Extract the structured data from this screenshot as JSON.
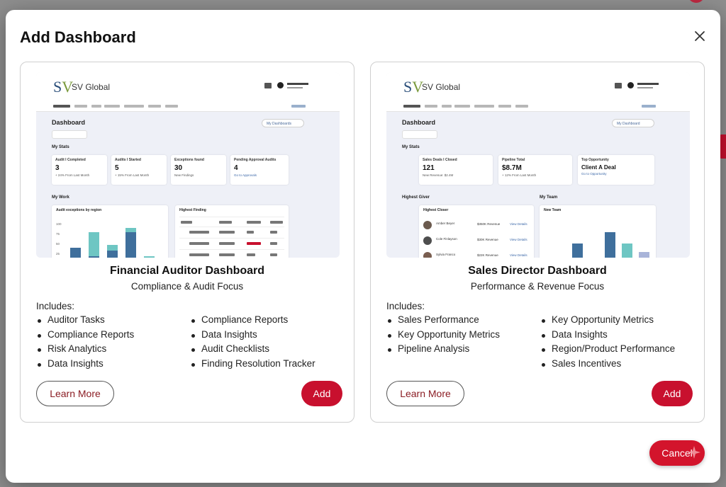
{
  "modal": {
    "title": "Add Dashboard",
    "cancel_label": "Cancel"
  },
  "cards": [
    {
      "title": "Financial Auditor Dashboard",
      "subtitle": "Compliance & Audit Focus",
      "includes_label": "Includes:",
      "features_col1": [
        "Auditor Tasks",
        "Compliance Reports",
        "Risk Analytics",
        "Data Insights"
      ],
      "features_col2": [
        "Compliance Reports",
        "Data Insights",
        "Audit Checklists",
        "Finding Resolution Tracker"
      ],
      "learn_more_label": "Learn More",
      "add_label": "Add",
      "preview": {
        "brand": "SV Global",
        "heading": "Dashboard",
        "dropdown": "My Dashboards",
        "stats_label": "My Stats",
        "stats": [
          {
            "label": "Audit I Completed",
            "value": "3",
            "delta": "+ 24% From Last Month"
          },
          {
            "label": "Audits I Started",
            "value": "5",
            "delta": "+ 15% From Last Month"
          },
          {
            "label": "Exceptions found",
            "value": "30",
            "delta": "New Findings"
          },
          {
            "label": "Pending Approval Audits",
            "value": "4",
            "delta": "Go to Approvals"
          }
        ],
        "work_label": "My Work",
        "chart_title": "Audit exceptions by region",
        "panel_title": "Highest Finding",
        "y_ticks": [
          "100",
          "75",
          "50",
          "25"
        ],
        "colors": {
          "dark": "#3f6f9c",
          "teal": "#6ec6c3",
          "mid": "#5b8fbe"
        }
      }
    },
    {
      "title": "Sales Director Dashboard",
      "subtitle": "Performance & Revenue Focus",
      "includes_label": "Includes:",
      "features_col1": [
        "Sales Performance",
        "Key Opportunity Metrics",
        "Pipeline Analysis"
      ],
      "features_col2": [
        "Key Opportunity Metrics",
        "Data Insights",
        "Region/Product Performance",
        "Sales Incentives"
      ],
      "learn_more_label": "Learn More",
      "add_label": "Add",
      "preview": {
        "brand": "SV Global",
        "heading": "Dashboard",
        "dropdown": "My Dashboard",
        "stats_label": "My Stats",
        "stats": [
          {
            "label": "Sales Deals I Closed",
            "value": "121",
            "delta": "New Revenue: $2.4M"
          },
          {
            "label": "Pipeline Total",
            "value": "$8.7M",
            "delta": "+ 12% From Last Month"
          },
          {
            "label": "Top Opportunity",
            "value": "Client A Deal",
            "delta": "Go to Opportunity"
          }
        ],
        "giver_label": "Highest Giver",
        "team_label": "My Team",
        "panel_title": "Highest Closer",
        "team_title": "New Team",
        "people": [
          {
            "name": "Amber Beyer",
            "value": "$350K Revenue",
            "link": "View Details"
          },
          {
            "name": "Cole Finlayson",
            "value": "$30K Revenue",
            "link": "View Details"
          },
          {
            "name": "Sylvia Franco",
            "value": "$22K Revenue",
            "link": "View Details"
          }
        ],
        "colors": {
          "dark": "#3f6f9c",
          "teal": "#6ec6c3",
          "lav": "#a9b4d9"
        }
      }
    }
  ]
}
